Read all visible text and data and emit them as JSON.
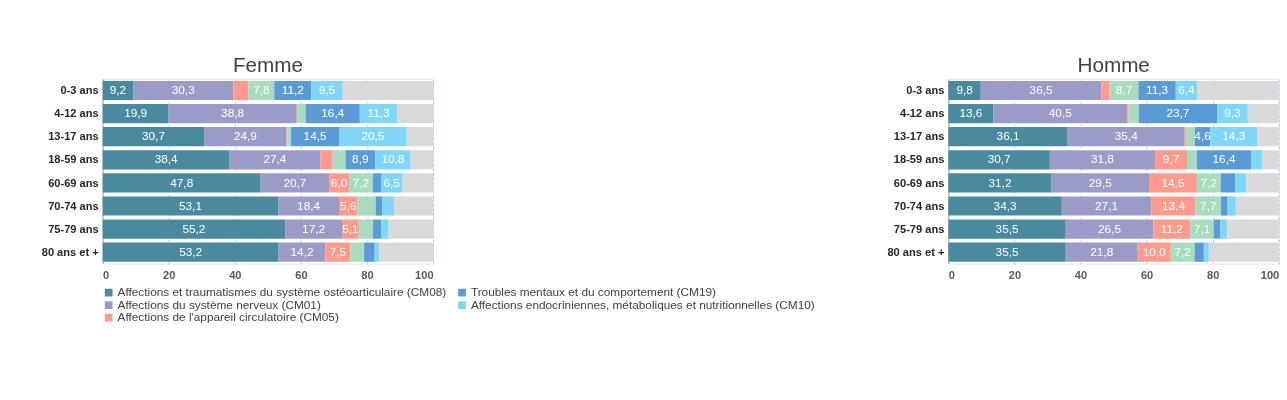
{
  "chart_data": [
    {
      "type": "bar",
      "orientation": "horizontal",
      "stacked": true,
      "title": "Femme",
      "categories": [
        "0-3 ans",
        "4-12 ans",
        "13-17 ans",
        "18-59 ans",
        "60-69 ans",
        "70-74 ans",
        "75-79 ans",
        "80 ans et +"
      ],
      "series": [
        {
          "name": "Affections et traumatismes du système ostéoarticulaire (CM08)",
          "color": "#4a8a9e",
          "values": [
            9.2,
            19.9,
            30.7,
            38.4,
            47.8,
            53.1,
            55.2,
            53.2
          ],
          "value_labels": [
            "9,2",
            "19,9",
            "30,7",
            "38,4",
            "47,8",
            "53,1",
            "55,2",
            "53,2"
          ]
        },
        {
          "name": "Affections du système nerveux (CM01)",
          "color": "#9b9bc8",
          "values": [
            30.3,
            38.8,
            24.9,
            27.4,
            20.7,
            18.4,
            17.2,
            14.2
          ],
          "value_labels": [
            "30,3",
            "38,8",
            "24,9",
            "27,4",
            "20,7",
            "18,4",
            "17,2",
            "14,2"
          ]
        },
        {
          "name": "Affections de l'appareil circulatoire (CM05)",
          "color": "#ff9a8e",
          "values": [
            4.6,
            0.3,
            0.3,
            3.8,
            6.0,
            5.6,
            5.1,
            7.5
          ],
          "value_labels": [
            null,
            null,
            null,
            null,
            "6,0",
            "5,6",
            "5,1",
            "7,5"
          ]
        },
        {
          "color": "#a9dcbf",
          "values": [
            7.8,
            2.4,
            1.1,
            3.9,
            7.2,
            5.5,
            4.3,
            4.2
          ],
          "value_labels": [
            "7,8",
            null,
            null,
            null,
            "7,2",
            null,
            null,
            null
          ]
        },
        {
          "name": "Troubles mentaux et du comportement (CM19)",
          "color": "#5b9bd5",
          "values": [
            11.2,
            16.4,
            14.5,
            8.9,
            2.5,
            2.0,
            2.4,
            3.2
          ],
          "value_labels": [
            "11,2",
            "16,4",
            "14,5",
            "8,9",
            null,
            null,
            null,
            null
          ]
        },
        {
          "name": "Affections endocriniennes, métaboliques et nutritionnelles (CM10)",
          "color": "#7fd6f7",
          "values": [
            9.5,
            11.3,
            20.5,
            10.8,
            6.5,
            3.5,
            2.3,
            1.4
          ],
          "value_labels": [
            "9,5",
            "11,3",
            "20,5",
            "10,8",
            "6,5",
            null,
            null,
            null
          ]
        },
        {
          "color": "#d9d9d9",
          "values": [
            27.4,
            10.9,
            8.0,
            6.8,
            9.3,
            11.9,
            13.5,
            16.3
          ]
        }
      ],
      "xlim": [
        0,
        100
      ],
      "xticks": [
        0,
        20,
        40,
        60,
        80,
        100
      ],
      "grid": "x",
      "legend": "bottom"
    },
    {
      "type": "bar",
      "orientation": "horizontal",
      "stacked": true,
      "title": "Homme",
      "categories": [
        "0-3 ans",
        "4-12 ans",
        "13-17 ans",
        "18-59 ans",
        "60-69 ans",
        "70-74 ans",
        "75-79 ans",
        "80 ans et +"
      ],
      "series": [
        {
          "name": "Affections et traumatismes du système ostéoarticulaire (CM08)",
          "color": "#4a8a9e",
          "values": [
            9.8,
            13.6,
            36.1,
            30.7,
            31.2,
            34.3,
            35.5,
            35.5
          ],
          "value_labels": [
            "9,8",
            "13,6",
            "36,1",
            "30,7",
            "31,2",
            "34,3",
            "35,5",
            "35,5"
          ]
        },
        {
          "name": "Affections du système nerveux (CM01)",
          "color": "#9b9bc8",
          "values": [
            36.5,
            40.5,
            35.4,
            31.8,
            29.5,
            27.1,
            26.5,
            21.8
          ],
          "value_labels": [
            "36,5",
            "40,5",
            "35,4",
            "31,8",
            "29,5",
            "27,1",
            "26,5",
            "21,8"
          ]
        },
        {
          "name": "Affections de l'appareil circulatoire (CM05)",
          "color": "#ff9a8e",
          "values": [
            2.5,
            0.4,
            0.5,
            9.7,
            14.5,
            13.4,
            11.2,
            10.0
          ],
          "value_labels": [
            null,
            null,
            null,
            "9,7",
            "14,5",
            "13,4",
            "11,2",
            "10,0"
          ]
        },
        {
          "color": "#a9dcbf",
          "values": [
            8.7,
            3.1,
            2.6,
            3.0,
            7.2,
            7.7,
            7.1,
            7.2
          ],
          "value_labels": [
            "8,7",
            null,
            null,
            null,
            "7,2",
            "7,7",
            "7,1",
            "7,2"
          ]
        },
        {
          "name": "Troubles mentaux et du comportement (CM19)",
          "color": "#5b9bd5",
          "values": [
            11.3,
            23.7,
            4.6,
            16.4,
            4.4,
            2.0,
            2.0,
            2.8
          ],
          "value_labels": [
            "11,3",
            "23,7",
            "4,6",
            "16,4",
            null,
            null,
            null,
            null
          ]
        },
        {
          "name": "Affections endocriniennes, métaboliques et nutritionnelles (CM10)",
          "color": "#7fd6f7",
          "values": [
            6.4,
            9.3,
            14.3,
            3.4,
            3.3,
            2.5,
            2.1,
            1.5
          ],
          "value_labels": [
            "6,4",
            "9,3",
            "14,3",
            null,
            null,
            null,
            null,
            null
          ]
        },
        {
          "color": "#d9d9d9",
          "values": [
            24.8,
            9.4,
            6.5,
            5.0,
            9.9,
            13.0,
            15.6,
            21.2
          ]
        }
      ],
      "xlim": [
        0,
        100
      ],
      "xticks": [
        0,
        20,
        40,
        60,
        80,
        100
      ],
      "grid": "x",
      "legend": "bottom"
    }
  ]
}
